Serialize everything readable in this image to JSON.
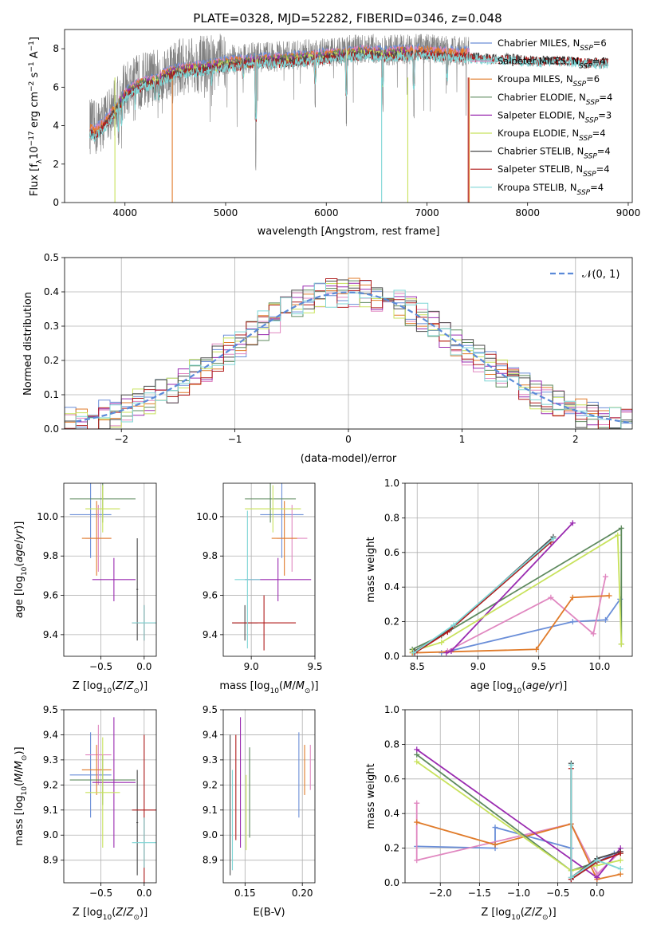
{
  "figure_title": "PLATE=0328, MJD=52282, FIBERID=0346, z=0.048",
  "colors": {
    "Chabrier MILES": "#6a8ed8",
    "Salpeter MILES": "#e087c0",
    "Kroupa MILES": "#e07b2a",
    "Chabrier ELODIE": "#5e8a5e",
    "Salpeter ELODIE": "#9a2bb0",
    "Kroupa ELODIE": "#c8e25c",
    "Chabrier STELIB": "#4a4a4a",
    "Salpeter STELIB": "#b01c1c",
    "Kroupa STELIB": "#7fd6d6"
  },
  "chart_data": [
    {
      "id": "spectrum",
      "type": "line",
      "title": "PLATE=0328, MJD=52282, FIBERID=0346, z=0.048",
      "xlabel": "wavelength [Angstrom, rest frame]",
      "ylabel": "Flux [f_λ10^-17 erg cm^-2 s^-1 A^-1]",
      "xlim": [
        3400,
        9040
      ],
      "ylim": [
        0,
        9
      ],
      "xticks": [
        4000,
        5000,
        6000,
        7000,
        8000,
        9000
      ],
      "yticks": [
        0,
        2,
        4,
        6,
        8
      ],
      "grid": false,
      "legend_position": "right",
      "legend": [
        {
          "name": "Chabrier MILES",
          "nssp": "6"
        },
        {
          "name": "Salpeter MILES",
          "nssp": "4"
        },
        {
          "name": "Kroupa MILES",
          "nssp": "6"
        },
        {
          "name": "Chabrier ELODIE",
          "nssp": "4"
        },
        {
          "name": "Salpeter ELODIE",
          "nssp": "3"
        },
        {
          "name": "Kroupa ELODIE",
          "nssp": "4"
        },
        {
          "name": "Chabrier STELIB",
          "nssp": "4"
        },
        {
          "name": "Salpeter STELIB",
          "nssp": "4"
        },
        {
          "name": "Kroupa STELIB",
          "nssp": "4"
        }
      ],
      "observed_color": "#808080",
      "observed_range": [
        3650,
        7420
      ],
      "continuum": {
        "x": [
          3650,
          3700,
          3800,
          3900,
          4000,
          4100,
          4200,
          4300,
          4400,
          4500,
          4600,
          4800,
          5000,
          5200,
          5400,
          5600,
          5800,
          6000,
          6200,
          6400,
          6600,
          6800,
          7000,
          7200,
          7400,
          7600,
          7800,
          8000,
          8200,
          8400,
          8600,
          8800
        ],
        "y": [
          4.0,
          3.8,
          4.3,
          5.0,
          5.8,
          6.2,
          6.4,
          6.5,
          6.8,
          7.0,
          7.1,
          7.2,
          7.4,
          7.5,
          7.6,
          7.6,
          7.7,
          7.8,
          7.9,
          8.0,
          7.9,
          8.0,
          8.0,
          7.9,
          7.9,
          7.8,
          7.8,
          7.7,
          7.7,
          7.7,
          7.6,
          7.6
        ]
      },
      "model_ranges": {
        "MILES": [
          3650,
          7420
        ],
        "ELODIE": [
          3900,
          6800
        ],
        "STELIB": [
          3650,
          8800
        ]
      }
    },
    {
      "id": "residuals",
      "type": "line",
      "xlabel": "(data-model)/error",
      "ylabel": "Normed distribution",
      "xlim": [
        -2.5,
        2.5
      ],
      "ylim": [
        0,
        0.5
      ],
      "xticks": [
        -2,
        -1,
        0,
        1,
        2
      ],
      "yticks": [
        0.0,
        0.1,
        0.2,
        0.3,
        0.4,
        0.5
      ],
      "grid": true,
      "legend_position": "top-right",
      "gaussian_label": "𝒩(0, 1)",
      "gaussian_color": "#5b8ad8",
      "bin_width": 0.1
    },
    {
      "id": "age_vs_Z",
      "type": "scatter",
      "xlabel": "Z [log10(Z/Z⊙)]",
      "ylabel": "age [log10(age/yr)]",
      "xlim": [
        -0.93,
        0.14
      ],
      "ylim": [
        9.29,
        10.17
      ],
      "xticks": [
        -0.5,
        0.0
      ],
      "yticks": [
        9.4,
        9.6,
        9.8,
        10.0
      ],
      "grid": true,
      "points": [
        {
          "series": "Chabrier MILES",
          "x": -0.62,
          "y": 10.01,
          "xerr": 0.24,
          "yerr": 0.22
        },
        {
          "series": "Salpeter MILES",
          "x": -0.53,
          "y": 9.89,
          "xerr": 0.15,
          "yerr": 0.17
        },
        {
          "series": "Kroupa MILES",
          "x": -0.55,
          "y": 9.89,
          "xerr": 0.17,
          "yerr": 0.19
        },
        {
          "series": "Chabrier ELODIE",
          "x": -0.48,
          "y": 10.09,
          "xerr": 0.38,
          "yerr": 0.12
        },
        {
          "series": "Salpeter ELODIE",
          "x": -0.35,
          "y": 9.68,
          "xerr": 0.25,
          "yerr": 0.11
        },
        {
          "series": "Kroupa ELODIE",
          "x": -0.48,
          "y": 10.04,
          "xerr": 0.2,
          "yerr": 0.12
        },
        {
          "series": "Chabrier STELIB",
          "x": -0.08,
          "y": 9.63,
          "xerr": 0.01,
          "yerr": 0.26
        },
        {
          "series": "Salpeter STELIB",
          "x": 0.0,
          "y": 9.46,
          "xerr": 0.14,
          "yerr": 0.09
        },
        {
          "series": "Kroupa STELIB",
          "x": 0.0,
          "y": 9.46,
          "xerr": 0.14,
          "yerr": 0.09
        }
      ]
    },
    {
      "id": "age_vs_mass",
      "type": "scatter",
      "xlabel": "mass [log10(M/M⊙)]",
      "ylabel": "",
      "xlim": [
        8.78,
        9.5
      ],
      "ylim": [
        9.29,
        10.17
      ],
      "xticks": [
        9.0,
        9.5
      ],
      "yticks": [
        9.4,
        9.6,
        9.8,
        10.0
      ],
      "grid": true,
      "points": [
        {
          "series": "Chabrier MILES",
          "x": 9.24,
          "y": 10.01,
          "xerr": 0.17,
          "yerr": 0.22
        },
        {
          "series": "Salpeter MILES",
          "x": 9.32,
          "y": 9.89,
          "xerr": 0.12,
          "yerr": 0.17
        },
        {
          "series": "Kroupa MILES",
          "x": 9.26,
          "y": 9.89,
          "xerr": 0.1,
          "yerr": 0.19
        },
        {
          "series": "Chabrier ELODIE",
          "x": 9.15,
          "y": 10.09,
          "xerr": 0.2,
          "yerr": 0.12
        },
        {
          "series": "Salpeter ELODIE",
          "x": 9.21,
          "y": 9.68,
          "xerr": 0.26,
          "yerr": 0.11
        },
        {
          "series": "Kroupa ELODIE",
          "x": 9.17,
          "y": 10.04,
          "xerr": 0.22,
          "yerr": 0.12
        },
        {
          "series": "Chabrier STELIB",
          "x": 8.95,
          "y": 9.46,
          "xerr": 0.1,
          "yerr": 0.09
        },
        {
          "series": "Salpeter STELIB",
          "x": 9.1,
          "y": 9.46,
          "xerr": 0.25,
          "yerr": 0.14
        },
        {
          "series": "Kroupa STELIB",
          "x": 8.97,
          "y": 9.68,
          "xerr": 0.1,
          "yerr": 0.35
        }
      ]
    },
    {
      "id": "massweight_vs_age",
      "type": "line",
      "xlabel": "age [log10(age/yr)]",
      "ylabel": "mass weight",
      "xlim": [
        8.4,
        10.27
      ],
      "ylim": [
        0,
        1
      ],
      "xticks": [
        8.5,
        9.0,
        9.5,
        10.0
      ],
      "yticks": [
        0.0,
        0.2,
        0.4,
        0.6,
        0.8,
        1.0
      ],
      "grid": true,
      "series": [
        {
          "name": "Chabrier MILES",
          "x": [
            8.7,
            9.78,
            10.05,
            10.17
          ],
          "y": [
            0.02,
            0.2,
            0.21,
            0.33
          ]
        },
        {
          "name": "Salpeter MILES",
          "x": [
            8.75,
            9.6,
            9.95,
            10.05
          ],
          "y": [
            0.03,
            0.34,
            0.13,
            0.46
          ]
        },
        {
          "name": "Kroupa MILES",
          "x": [
            8.46,
            9.48,
            9.78,
            10.08
          ],
          "y": [
            0.02,
            0.04,
            0.34,
            0.35
          ]
        },
        {
          "name": "Chabrier ELODIE",
          "x": [
            8.46,
            8.7,
            10.18,
            10.18
          ],
          "y": [
            0.04,
            0.12,
            0.74,
            0.07
          ]
        },
        {
          "name": "Salpeter ELODIE",
          "x": [
            8.74,
            8.78,
            9.78
          ],
          "y": [
            0.02,
            0.03,
            0.77
          ]
        },
        {
          "name": "Kroupa ELODIE",
          "x": [
            8.46,
            8.7,
            10.15,
            10.18
          ],
          "y": [
            0.03,
            0.08,
            0.7,
            0.07
          ]
        },
        {
          "name": "Chabrier STELIB",
          "x": [
            8.48,
            8.78,
            9.62
          ],
          "y": [
            0.03,
            0.16,
            0.69
          ]
        },
        {
          "name": "Salpeter STELIB",
          "x": [
            8.48,
            8.75,
            9.6
          ],
          "y": [
            0.02,
            0.14,
            0.66
          ]
        },
        {
          "name": "Kroupa STELIB",
          "x": [
            8.47,
            8.8,
            9.62
          ],
          "y": [
            0.02,
            0.18,
            0.68
          ]
        }
      ]
    },
    {
      "id": "mass_vs_Z",
      "type": "scatter",
      "xlabel": "Z [log10(Z/Z⊙)]",
      "ylabel": "mass [log10(M/M⊙)]",
      "xlim": [
        -0.93,
        0.14
      ],
      "ylim": [
        8.81,
        9.5
      ],
      "xticks": [
        -0.5,
        0.0
      ],
      "yticks": [
        8.9,
        9.0,
        9.1,
        9.2,
        9.3,
        9.4,
        9.5
      ],
      "grid": true,
      "points": [
        {
          "series": "Chabrier MILES",
          "x": -0.62,
          "y": 9.24,
          "xerr": 0.24,
          "yerr": 0.17
        },
        {
          "series": "Salpeter MILES",
          "x": -0.53,
          "y": 9.32,
          "xerr": 0.15,
          "yerr": 0.12
        },
        {
          "series": "Kroupa MILES",
          "x": -0.55,
          "y": 9.26,
          "xerr": 0.17,
          "yerr": 0.1
        },
        {
          "series": "Chabrier ELODIE",
          "x": -0.48,
          "y": 9.22,
          "xerr": 0.38,
          "yerr": 0.1
        },
        {
          "series": "Salpeter ELODIE",
          "x": -0.35,
          "y": 9.21,
          "xerr": 0.25,
          "yerr": 0.26
        },
        {
          "series": "Kroupa ELODIE",
          "x": -0.48,
          "y": 9.17,
          "xerr": 0.2,
          "yerr": 0.22
        },
        {
          "series": "Chabrier STELIB",
          "x": -0.08,
          "y": 9.05,
          "xerr": 0.01,
          "yerr": 0.21
        },
        {
          "series": "Salpeter STELIB",
          "x": 0.0,
          "y": 9.1,
          "xerr": 0.14,
          "yerr": 0.3
        },
        {
          "series": "Kroupa STELIB",
          "x": 0.0,
          "y": 8.97,
          "xerr": 0.14,
          "yerr": 0.1
        }
      ]
    },
    {
      "id": "mass_vs_ebv",
      "type": "scatter",
      "xlabel": "E(B-V)",
      "ylabel": "",
      "xlim": [
        0.131,
        0.211
      ],
      "ylim": [
        8.81,
        9.5
      ],
      "xticks": [
        0.15,
        0.2
      ],
      "yticks": [
        8.9,
        9.0,
        9.1,
        9.2,
        9.3,
        9.4,
        9.5
      ],
      "grid": true,
      "points": [
        {
          "series": "Chabrier MILES",
          "x": 0.197,
          "y": 9.24,
          "xerr": 0,
          "yerr": 0.17
        },
        {
          "series": "Salpeter MILES",
          "x": 0.207,
          "y": 9.27,
          "xerr": 0,
          "yerr": 0.09
        },
        {
          "series": "Kroupa MILES",
          "x": 0.202,
          "y": 9.26,
          "xerr": 0,
          "yerr": 0.1
        },
        {
          "series": "Chabrier ELODIE",
          "x": 0.154,
          "y": 9.17,
          "xerr": 0,
          "yerr": 0.18
        },
        {
          "series": "Salpeter ELODIE",
          "x": 0.146,
          "y": 9.21,
          "xerr": 0,
          "yerr": 0.26
        },
        {
          "series": "Kroupa ELODIE",
          "x": 0.151,
          "y": 9.09,
          "xerr": 0,
          "yerr": 0.15
        },
        {
          "series": "Chabrier STELIB",
          "x": 0.137,
          "y": 9.12,
          "xerr": 0,
          "yerr": 0.28
        },
        {
          "series": "Salpeter STELIB",
          "x": 0.142,
          "y": 9.19,
          "xerr": 0,
          "yerr": 0.21
        },
        {
          "series": "Kroupa STELIB",
          "x": 0.139,
          "y": 9.06,
          "xerr": 0,
          "yerr": 0.2
        }
      ]
    },
    {
      "id": "massweight_vs_Z",
      "type": "line",
      "xlabel": "Z [log10(Z/Z⊙)]",
      "ylabel": "mass weight",
      "xlim": [
        -2.45,
        0.45
      ],
      "ylim": [
        0,
        1
      ],
      "xticks": [
        -2.0,
        -1.5,
        -1.0,
        -0.5,
        0.0
      ],
      "yticks": [
        0.0,
        0.2,
        0.4,
        0.6,
        0.8,
        1.0
      ],
      "grid": true,
      "series": [
        {
          "name": "Chabrier MILES",
          "x": [
            -2.3,
            -1.3,
            -1.3,
            -0.33,
            -0.33,
            0.0,
            0.22
          ],
          "y": [
            0.21,
            0.2,
            0.32,
            0.2,
            0.02,
            0.12,
            0.17
          ]
        },
        {
          "name": "Salpeter MILES",
          "x": [
            -2.3,
            -2.3,
            -0.33,
            0.0,
            0.3
          ],
          "y": [
            0.46,
            0.13,
            0.34,
            0.05,
            0.18
          ]
        },
        {
          "name": "Kroupa MILES",
          "x": [
            -2.3,
            -1.3,
            -0.33,
            0.0,
            0.3
          ],
          "y": [
            0.35,
            0.22,
            0.34,
            0.02,
            0.05
          ]
        },
        {
          "name": "Chabrier ELODIE",
          "x": [
            -2.3,
            -0.33,
            0.0,
            0.3
          ],
          "y": [
            0.74,
            0.07,
            0.12,
            0.17
          ]
        },
        {
          "name": "Salpeter ELODIE",
          "x": [
            -2.3,
            0.0,
            0.3
          ],
          "y": [
            0.77,
            0.03,
            0.2
          ]
        },
        {
          "name": "Kroupa ELODIE",
          "x": [
            -2.3,
            -0.33,
            0.0,
            0.3
          ],
          "y": [
            0.7,
            0.07,
            0.1,
            0.13
          ]
        },
        {
          "name": "Chabrier STELIB",
          "x": [
            -0.33,
            -0.33,
            0.0,
            0.3
          ],
          "y": [
            0.69,
            0.03,
            0.14,
            0.18
          ]
        },
        {
          "name": "Salpeter STELIB",
          "x": [
            -0.33,
            -0.33,
            0.0,
            0.3
          ],
          "y": [
            0.66,
            0.02,
            0.12,
            0.17
          ]
        },
        {
          "name": "Kroupa STELIB",
          "x": [
            -0.33,
            -0.33,
            0.0,
            0.3
          ],
          "y": [
            0.68,
            0.03,
            0.13,
            0.08
          ]
        }
      ]
    }
  ]
}
